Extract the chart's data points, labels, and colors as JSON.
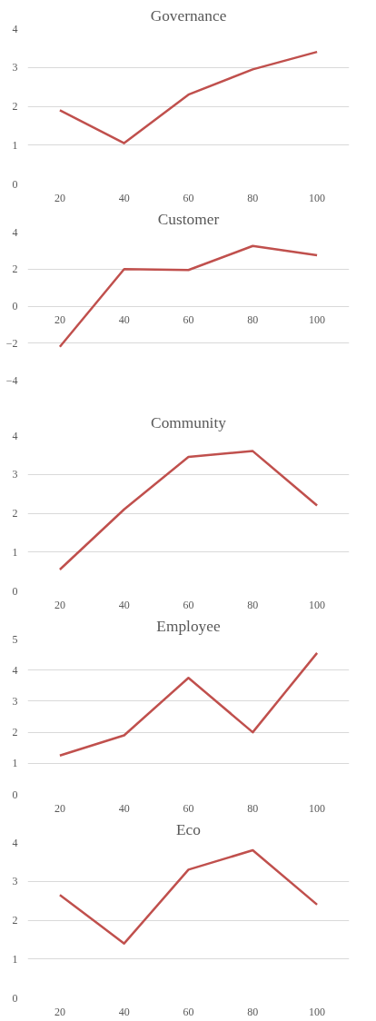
{
  "chart_data": [
    {
      "type": "line",
      "title": "Governance",
      "categories": [
        "20",
        "40",
        "60",
        "80",
        "100"
      ],
      "series": [
        {
          "color": "#c0504d",
          "values": [
            1.9,
            1.05,
            2.3,
            2.95,
            3.4
          ]
        }
      ],
      "ylim": [
        0,
        4
      ],
      "yticks": [
        0,
        1,
        2,
        3,
        4
      ],
      "grid": "y",
      "line_style": "solid",
      "marker": "none"
    },
    {
      "type": "line",
      "title": "Customer",
      "categories": [
        "20",
        "40",
        "60",
        "80",
        "100"
      ],
      "series": [
        {
          "color": "#c0504d",
          "values": [
            -2.2,
            2.0,
            1.95,
            3.25,
            2.75
          ]
        }
      ],
      "ylim": [
        -4,
        4
      ],
      "yticks": [
        -4,
        -2,
        0,
        2,
        4
      ],
      "grid": "y",
      "line_style": "solid",
      "marker": "none"
    },
    {
      "type": "line",
      "title": "Community",
      "categories": [
        "20",
        "40",
        "60",
        "80",
        "100"
      ],
      "series": [
        {
          "color": "#c0504d",
          "values": [
            0.55,
            2.1,
            3.45,
            3.6,
            2.2
          ]
        }
      ],
      "ylim": [
        0,
        4
      ],
      "yticks": [
        0,
        1,
        2,
        3,
        4
      ],
      "grid": "y",
      "line_style": "solid",
      "marker": "none"
    },
    {
      "type": "line",
      "title": "Employee",
      "categories": [
        "20",
        "40",
        "60",
        "80",
        "100"
      ],
      "series": [
        {
          "color": "#c0504d",
          "values": [
            1.25,
            1.9,
            3.75,
            2.0,
            4.55
          ]
        }
      ],
      "ylim": [
        0,
        5
      ],
      "yticks": [
        0,
        1,
        2,
        3,
        4,
        5
      ],
      "grid": "y",
      "line_style": "solid",
      "marker": "none"
    },
    {
      "type": "line",
      "title": "Eco",
      "categories": [
        "20",
        "40",
        "60",
        "80",
        "100"
      ],
      "series": [
        {
          "color": "#c0504d",
          "values": [
            2.65,
            1.4,
            3.3,
            3.8,
            2.4
          ]
        }
      ],
      "ylim": [
        0,
        4
      ],
      "yticks": [
        0,
        1,
        2,
        3,
        4
      ],
      "grid": "y",
      "line_style": "solid",
      "marker": "none"
    }
  ]
}
